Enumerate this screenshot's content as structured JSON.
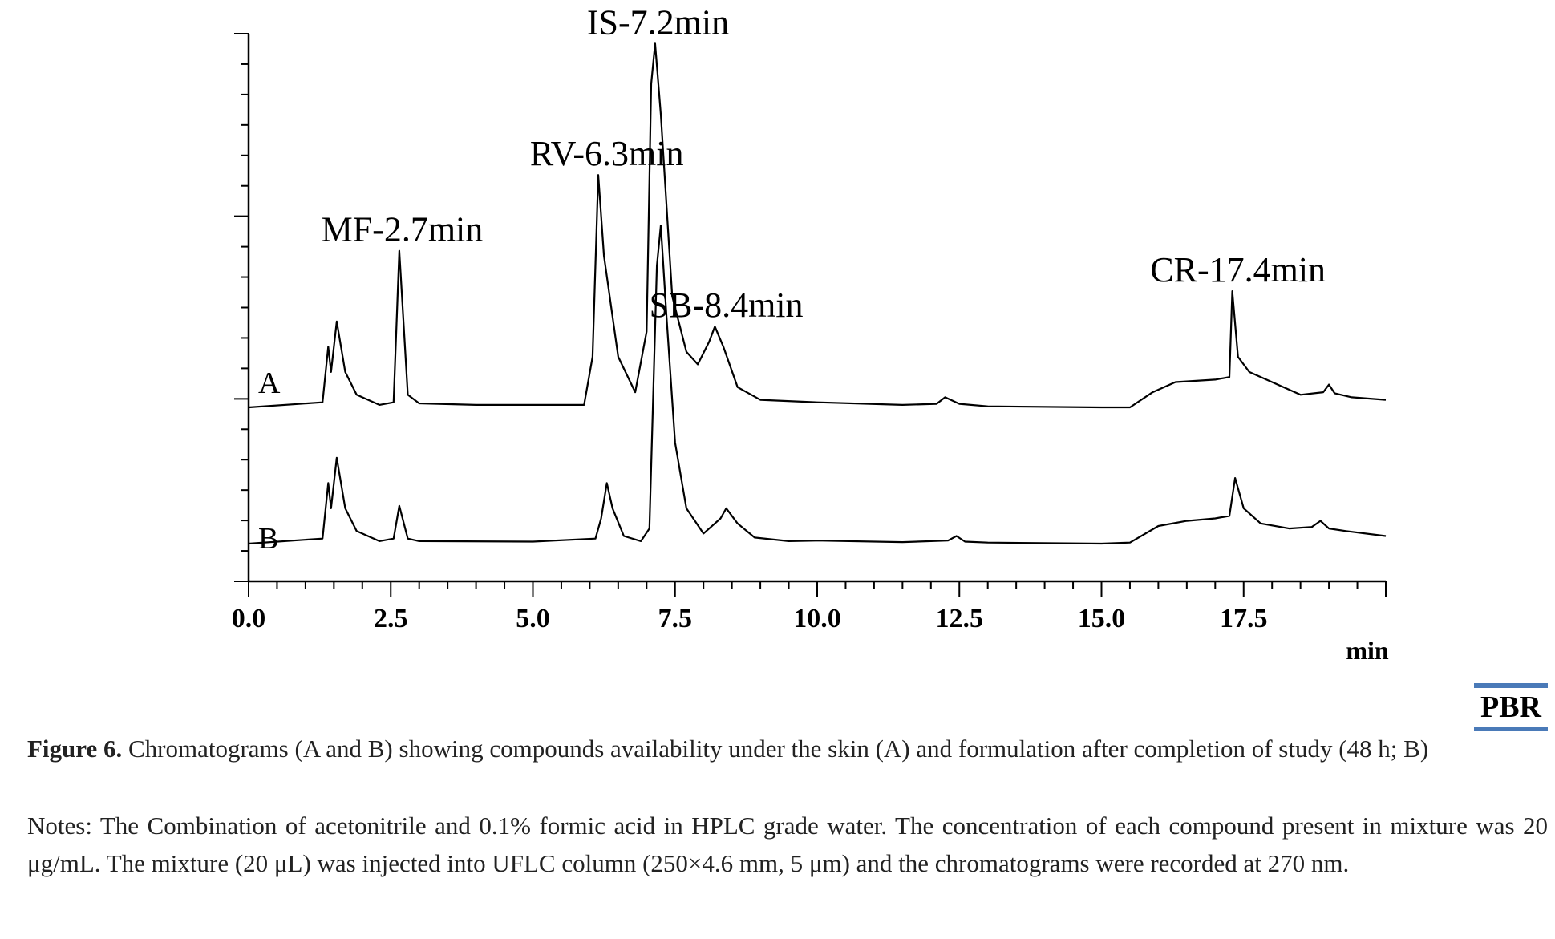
{
  "chart_data": {
    "type": "line",
    "title": "",
    "xlabel": "min",
    "ylabel": "",
    "xlim": [
      0,
      20
    ],
    "ylim": [
      0,
      1.0
    ],
    "x_ticks": [
      "0.0",
      "2.5",
      "5.0",
      "7.5",
      "10.0",
      "12.5",
      "15.0",
      "17.5"
    ],
    "grid": false,
    "series": [
      {
        "name": "A",
        "baseline": 0,
        "points": [
          [
            0,
            0
          ],
          [
            1.3,
            0.01
          ],
          [
            1.4,
            0.12
          ],
          [
            1.45,
            0.07
          ],
          [
            1.55,
            0.17
          ],
          [
            1.7,
            0.07
          ],
          [
            1.9,
            0.025
          ],
          [
            2.3,
            0.005
          ],
          [
            2.55,
            0.01
          ],
          [
            2.65,
            0.31
          ],
          [
            2.8,
            0.025
          ],
          [
            3.0,
            0.008
          ],
          [
            4.0,
            0.005
          ],
          [
            5.9,
            0.005
          ],
          [
            6.05,
            0.1
          ],
          [
            6.15,
            0.46
          ],
          [
            6.25,
            0.3
          ],
          [
            6.5,
            0.1
          ],
          [
            6.8,
            0.03
          ],
          [
            7.0,
            0.15
          ],
          [
            7.08,
            0.64
          ],
          [
            7.15,
            0.72
          ],
          [
            7.25,
            0.58
          ],
          [
            7.45,
            0.22
          ],
          [
            7.7,
            0.11
          ],
          [
            7.9,
            0.085
          ],
          [
            8.1,
            0.13
          ],
          [
            8.2,
            0.16
          ],
          [
            8.35,
            0.12
          ],
          [
            8.6,
            0.04
          ],
          [
            9.0,
            0.015
          ],
          [
            10.0,
            0.01
          ],
          [
            11.5,
            0.005
          ],
          [
            12.1,
            0.007
          ],
          [
            12.25,
            0.02
          ],
          [
            12.5,
            0.007
          ],
          [
            13.0,
            0.002
          ],
          [
            15.0,
            0.0
          ],
          [
            15.5,
            0.0
          ],
          [
            15.9,
            0.03
          ],
          [
            16.3,
            0.05
          ],
          [
            17.0,
            0.055
          ],
          [
            17.25,
            0.06
          ],
          [
            17.3,
            0.23
          ],
          [
            17.4,
            0.1
          ],
          [
            17.6,
            0.07
          ],
          [
            18.0,
            0.05
          ],
          [
            18.5,
            0.025
          ],
          [
            18.9,
            0.03
          ],
          [
            19.0,
            0.045
          ],
          [
            19.1,
            0.028
          ],
          [
            19.4,
            0.02
          ],
          [
            20.0,
            0.015
          ]
        ]
      },
      {
        "name": "B",
        "baseline": 0,
        "points": [
          [
            0,
            0
          ],
          [
            1.3,
            0.01
          ],
          [
            1.4,
            0.12
          ],
          [
            1.45,
            0.07
          ],
          [
            1.55,
            0.17
          ],
          [
            1.7,
            0.07
          ],
          [
            1.9,
            0.025
          ],
          [
            2.3,
            0.005
          ],
          [
            2.55,
            0.01
          ],
          [
            2.65,
            0.075
          ],
          [
            2.8,
            0.01
          ],
          [
            3.0,
            0.005
          ],
          [
            5.0,
            0.004
          ],
          [
            6.1,
            0.01
          ],
          [
            6.2,
            0.05
          ],
          [
            6.3,
            0.12
          ],
          [
            6.4,
            0.07
          ],
          [
            6.6,
            0.015
          ],
          [
            6.9,
            0.005
          ],
          [
            7.05,
            0.03
          ],
          [
            7.18,
            0.55
          ],
          [
            7.25,
            0.63
          ],
          [
            7.35,
            0.45
          ],
          [
            7.5,
            0.2
          ],
          [
            7.7,
            0.07
          ],
          [
            8.0,
            0.02
          ],
          [
            8.3,
            0.05
          ],
          [
            8.4,
            0.07
          ],
          [
            8.6,
            0.04
          ],
          [
            8.9,
            0.012
          ],
          [
            9.5,
            0.005
          ],
          [
            10.0,
            0.006
          ],
          [
            11.5,
            0.003
          ],
          [
            12.3,
            0.006
          ],
          [
            12.45,
            0.015
          ],
          [
            12.6,
            0.004
          ],
          [
            13.0,
            0.002
          ],
          [
            15.0,
            0.0
          ],
          [
            15.5,
            0.002
          ],
          [
            16.0,
            0.035
          ],
          [
            16.5,
            0.045
          ],
          [
            17.0,
            0.05
          ],
          [
            17.25,
            0.055
          ],
          [
            17.35,
            0.13
          ],
          [
            17.5,
            0.07
          ],
          [
            17.8,
            0.04
          ],
          [
            18.3,
            0.03
          ],
          [
            18.7,
            0.033
          ],
          [
            18.85,
            0.045
          ],
          [
            19.0,
            0.03
          ],
          [
            19.3,
            0.025
          ],
          [
            20.0,
            0.015
          ]
        ]
      }
    ],
    "annotations": [
      {
        "label": "MF-2.7min",
        "series": "A",
        "x": 2.7
      },
      {
        "label": "RV-6.3min",
        "series": "A",
        "x": 6.3
      },
      {
        "label": "IS-7.2min",
        "series": "A",
        "x": 7.2
      },
      {
        "label": "SB-8.4min",
        "series": "A",
        "x": 8.4
      },
      {
        "label": "CR-17.4min",
        "series": "A",
        "x": 17.4
      }
    ]
  },
  "logo": {
    "text": "PBR",
    "rule_color": "#4a7ab8"
  },
  "caption": {
    "label": "Figure 6.",
    "text": " Chromatograms (A and B) showing compounds availability under the skin (A) and formulation after completion of study (48 h; B)"
  },
  "notes": {
    "text": "Notes: The Combination of acetonitrile and 0.1% formic acid in HPLC grade water. The concentration of each compound present in mixture was 20 μg/mL. The mixture (20 μL) was injected into UFLC column (250×4.6 mm, 5 μm) and the chromatograms were recorded at 270 nm."
  }
}
